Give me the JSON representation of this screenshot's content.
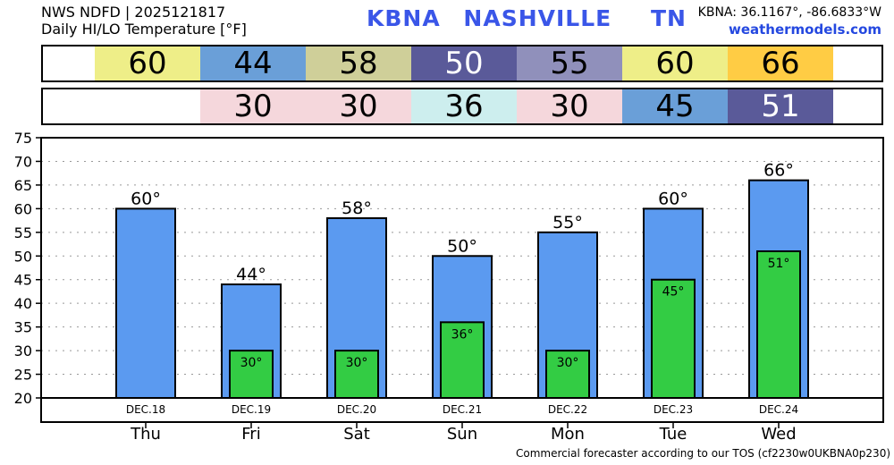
{
  "header": {
    "line1": "NWS NDFD | 2025121817",
    "line2": "Daily HI/LO Temperature [°F]",
    "station": "KBNA",
    "city": "NASHVILLE",
    "state": "TN",
    "coords": "KBNA: 36.1167°, -86.6833°W",
    "site": "weathermodels.com"
  },
  "hi_strip": [
    {
      "value": "60",
      "color": "#eeee88"
    },
    {
      "value": "44",
      "color": "#6a9fd8"
    },
    {
      "value": "58",
      "color": "#cfcf99"
    },
    {
      "value": "50",
      "color": "#5a5a99"
    },
    {
      "value": "55",
      "color": "#9090bb"
    },
    {
      "value": "60",
      "color": "#eeee88"
    },
    {
      "value": "66",
      "color": "#ffcc44"
    }
  ],
  "lo_strip": [
    {
      "value": "",
      "color": "#ffffff"
    },
    {
      "value": "30",
      "color": "#f5d7dc"
    },
    {
      "value": "30",
      "color": "#f5d7dc"
    },
    {
      "value": "36",
      "color": "#cdeeee"
    },
    {
      "value": "30",
      "color": "#f5d7dc"
    },
    {
      "value": "45",
      "color": "#6a9fd8"
    },
    {
      "value": "51",
      "color": "#5a5a99"
    }
  ],
  "footer": "Commercial forecaster according to our TOS (cf2230w0UKBNA0p230)",
  "chart_data": {
    "type": "bar",
    "categories": [
      "Thu",
      "Fri",
      "Sat",
      "Sun",
      "Mon",
      "Tue",
      "Wed"
    ],
    "dates": [
      "DEC.18",
      "DEC.19",
      "DEC.20",
      "DEC.21",
      "DEC.22",
      "DEC.23",
      "DEC.24"
    ],
    "series": [
      {
        "name": "HI",
        "values": [
          60,
          44,
          58,
          50,
          55,
          60,
          66
        ],
        "color": "#5b9af0"
      },
      {
        "name": "LO",
        "values": [
          null,
          30,
          30,
          36,
          30,
          45,
          51
        ],
        "color": "#33cc44"
      }
    ],
    "hi_labels": [
      "60°",
      "44°",
      "58°",
      "50°",
      "55°",
      "60°",
      "66°"
    ],
    "lo_labels": [
      "",
      "30°",
      "30°",
      "36°",
      "30°",
      "45°",
      "51°"
    ],
    "ylim": [
      20,
      75
    ],
    "yticks": [
      "20",
      "25",
      "30",
      "35",
      "40",
      "45",
      "50",
      "55",
      "60",
      "65",
      "70",
      "75"
    ],
    "grid": true
  }
}
